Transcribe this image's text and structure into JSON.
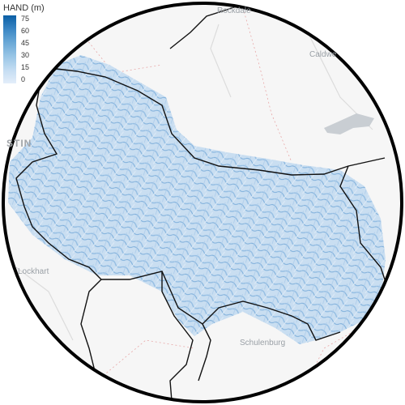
{
  "legend": {
    "title": "HAND (m)",
    "ticks": [
      "75",
      "60",
      "45",
      "30",
      "15",
      "0"
    ],
    "colors": [
      "#0b5fa5",
      "#3a86c4",
      "#6aa8d6",
      "#98c5e6",
      "#c3dcf2",
      "#e4eefa"
    ]
  },
  "places": {
    "rockdale": "Rockdale",
    "caldwell": "Caldwe",
    "austin": "STIN",
    "lockhart": "Lockhart",
    "schulenburg": "Schulenburg"
  },
  "colors": {
    "basemap": "#f6f6f6",
    "region_fill": "#d4e5f6",
    "boundary": "#111111",
    "frame": "#000000",
    "water": "#c9ced3",
    "roads": "#e8a8a8"
  }
}
